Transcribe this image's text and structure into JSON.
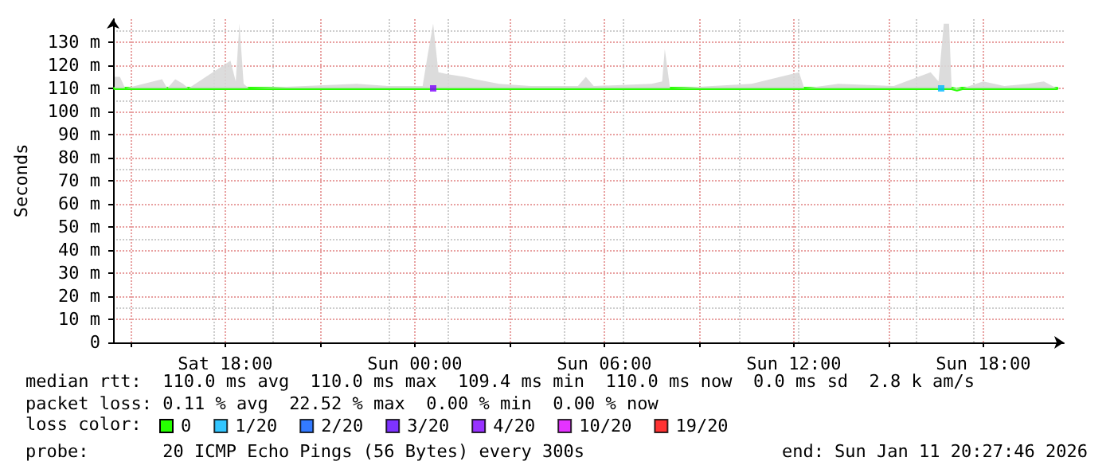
{
  "chart_data": {
    "type": "line",
    "ylabel": "Seconds",
    "legend_title": "loss color:",
    "legend": "bottom",
    "grid": true,
    "marker": "none",
    "line_style": "solid",
    "xlim": [
      "2026-01-10T14:27",
      "2026-01-11T20:33"
    ],
    "xticks": [
      {
        "value": "2026-01-10T15:00",
        "label": null
      },
      {
        "value": "2026-01-10T18:00",
        "label": "Sat 18:00"
      },
      {
        "value": "2026-01-10T21:00",
        "label": null
      },
      {
        "value": "2026-01-11T00:00",
        "label": "Sun 00:00"
      },
      {
        "value": "2026-01-11T03:00",
        "label": null
      },
      {
        "value": "2026-01-11T06:00",
        "label": "Sun 06:00"
      },
      {
        "value": "2026-01-11T09:00",
        "label": null
      },
      {
        "value": "2026-01-11T12:00",
        "label": "Sun 12:00"
      },
      {
        "value": "2026-01-11T15:00",
        "label": null
      },
      {
        "value": "2026-01-11T18:00",
        "label": "Sun 18:00"
      }
    ],
    "ylim": [
      0,
      140
    ],
    "yticks": [
      0,
      {
        "value": 10,
        "label": "10 m"
      },
      {
        "value": 20,
        "label": "20 m"
      },
      {
        "value": 30,
        "label": "30 m"
      },
      {
        "value": 40,
        "label": "40 m"
      },
      {
        "value": 50,
        "label": "50 m"
      },
      {
        "value": 60,
        "label": "60 m"
      },
      {
        "value": 70,
        "label": "70 m"
      },
      {
        "value": 80,
        "label": "80 m"
      },
      {
        "value": 90,
        "label": "90 m"
      },
      {
        "value": 100,
        "label": "100 m"
      },
      {
        "value": 110,
        "label": "110 m"
      },
      {
        "value": 120,
        "label": "120 m"
      },
      {
        "value": 130,
        "label": "130 m"
      }
    ],
    "series": [
      {
        "name": "0",
        "color": "#26ff00",
        "x": [
          "2026-01-10T14:30",
          "2026-01-10T14:40",
          "2026-01-10T14:50",
          "2026-01-10T16:00",
          "2026-01-10T16:10",
          "2026-01-10T16:25",
          "2026-01-10T16:40",
          "2026-01-10T16:50",
          "2026-01-10T18:10",
          "2026-01-10T18:20",
          "2026-01-10T18:27",
          "2026-01-10T18:35",
          "2026-01-10T18:45",
          "2026-01-10T22:10",
          "2026-01-10T23:10",
          "2026-01-11T00:15",
          "2026-01-11T00:20",
          "2026-01-11T00:25",
          "2026-01-11T00:35",
          "2026-01-11T00:45",
          "2026-01-11T01:05",
          "2026-01-11T01:35",
          "2026-01-11T01:55",
          "2026-01-11T02:40",
          "2026-01-11T03:40",
          "2026-01-11T05:10",
          "2026-01-11T05:25",
          "2026-01-11T05:40",
          "2026-01-11T07:30",
          "2026-01-11T07:50",
          "2026-01-11T07:55",
          "2026-01-11T08:05",
          "2026-01-11T10:40",
          "2026-01-11T12:10",
          "2026-01-11T12:20",
          "2026-01-11T13:25",
          "2026-01-11T15:10",
          "2026-01-11T16:20",
          "2026-01-11T16:35",
          "2026-01-11T16:45",
          "2026-01-11T16:55",
          "2026-01-11T17:00",
          "2026-01-11T17:10",
          "2026-01-11T17:20",
          "2026-01-11T18:00",
          "2026-01-11T18:40",
          "2026-01-11T19:25",
          "2026-01-11T19:55",
          "2026-01-11T20:20"
        ],
        "values": [
          110,
          110,
          110,
          110,
          110,
          110,
          110,
          110,
          110,
          110,
          110,
          110,
          110,
          110,
          110,
          110,
          110,
          110,
          110,
          110,
          110,
          110,
          110,
          110,
          110,
          110,
          110,
          110,
          110,
          110,
          110,
          110,
          110,
          110,
          110,
          110,
          110,
          110,
          110,
          110,
          110,
          110,
          109.4,
          110,
          110,
          110,
          110,
          110,
          110
        ],
        "lower": [
          110,
          110,
          110,
          110,
          110,
          110,
          110,
          110,
          110,
          110,
          110,
          110,
          110,
          110,
          110,
          110,
          110,
          110,
          110,
          110,
          110,
          110,
          110,
          110,
          110,
          110,
          110,
          110,
          110,
          110,
          110,
          110,
          110,
          110,
          110,
          110,
          110,
          110,
          110,
          110,
          110,
          110,
          109.4,
          110,
          110,
          110,
          110,
          110,
          110
        ],
        "upper": [
          115,
          115,
          110,
          114,
          110,
          114,
          112,
          110,
          122,
          113,
          138,
          112,
          110,
          112,
          111,
          111,
          118,
          125,
          138,
          117,
          116,
          115,
          114,
          112,
          111,
          111,
          115,
          111,
          112,
          113,
          127,
          110,
          112,
          117,
          110,
          112,
          111,
          117,
          113,
          138,
          138,
          110,
          110,
          110,
          113,
          111,
          112,
          113,
          110
        ]
      },
      {
        "name": "1/20",
        "color": "#00b8ff",
        "type": "scatter",
        "marker": "square",
        "x": [
          "2026-01-11T16:40"
        ],
        "values": [
          110
        ]
      },
      {
        "name": "2/20",
        "color": "#0059ff",
        "type": "scatter",
        "marker": "square"
      },
      {
        "name": "3/20",
        "color": "#5e00ff",
        "type": "scatter",
        "marker": "square"
      },
      {
        "name": "4/20",
        "color": "#7e00ff",
        "type": "scatter",
        "marker": "square",
        "x": [
          "2026-01-11T00:35"
        ],
        "values": [
          110
        ]
      },
      {
        "name": "10/20",
        "color": "#dd00ff",
        "type": "scatter",
        "marker": "square"
      },
      {
        "name": "19/20",
        "color": "#ff0000",
        "type": "scatter",
        "marker": "square"
      }
    ],
    "annotations": [
      "median rtt:  110.0 ms avg  110.0 ms max  109.4 ms min  110.0 ms now  0.0 ms sd  2.8 k am/s",
      "packet loss: 0.11 % avg  22.52 % max  0.00 % min  0.00 % now",
      "probe:       20 ICMP Echo Pings (56 Bytes) every 300s",
      "end: Sun Jan 11 20:27:46 2026"
    ]
  }
}
